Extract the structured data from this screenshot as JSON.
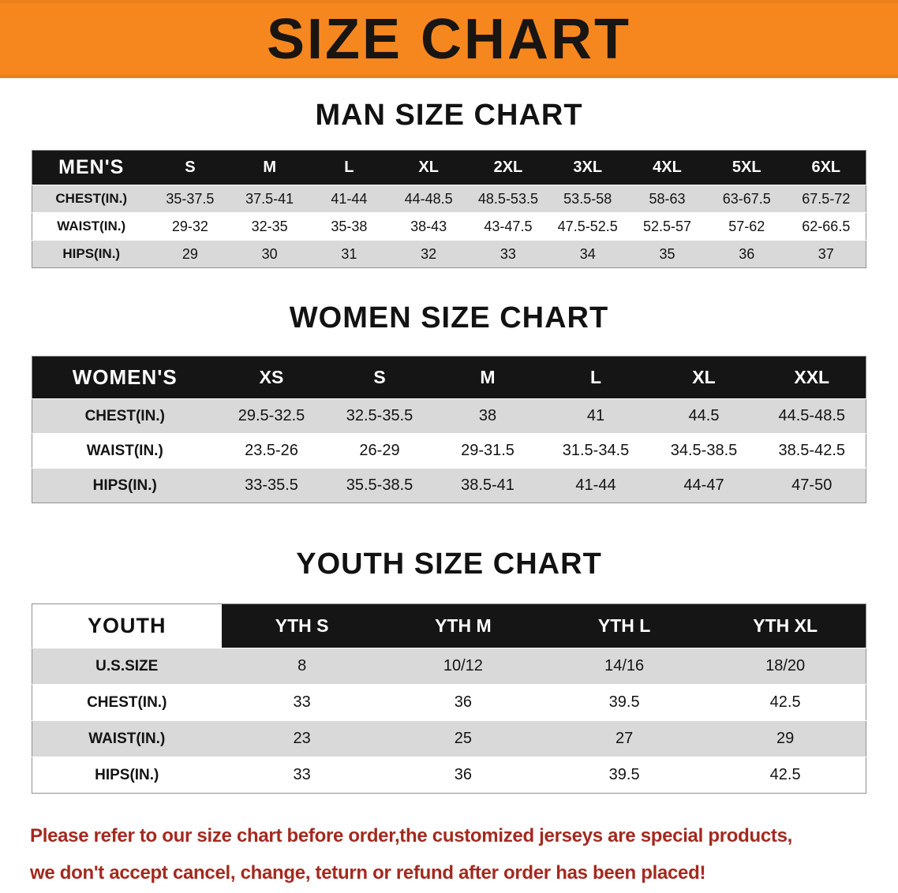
{
  "banner": {
    "title": "SIZE CHART"
  },
  "sections": [
    {
      "id": "men",
      "heading": "MAN SIZE CHART",
      "table": {
        "header": [
          "MEN'S",
          "S",
          "M",
          "L",
          "XL",
          "2XL",
          "3XL",
          "4XL",
          "5XL",
          "6XL"
        ],
        "rows": [
          [
            "CHEST(IN.)",
            "35-37.5",
            "37.5-41",
            "41-44",
            "44-48.5",
            "48.5-53.5",
            "53.5-58",
            "58-63",
            "63-67.5",
            "67.5-72"
          ],
          [
            "WAIST(IN.)",
            "29-32",
            "32-35",
            "35-38",
            "38-43",
            "43-47.5",
            "47.5-52.5",
            "52.5-57",
            "57-62",
            "62-66.5"
          ],
          [
            "HIPS(IN.)",
            "29",
            "30",
            "31",
            "32",
            "33",
            "34",
            "35",
            "36",
            "37"
          ]
        ]
      }
    },
    {
      "id": "women",
      "heading": "WOMEN SIZE CHART",
      "table": {
        "header": [
          "WOMEN'S",
          "XS",
          "S",
          "M",
          "L",
          "XL",
          "XXL"
        ],
        "rows": [
          [
            "CHEST(IN.)",
            "29.5-32.5",
            "32.5-35.5",
            "38",
            "41",
            "44.5",
            "44.5-48.5"
          ],
          [
            "WAIST(IN.)",
            "23.5-26",
            "26-29",
            "29-31.5",
            "31.5-34.5",
            "34.5-38.5",
            "38.5-42.5"
          ],
          [
            "HIPS(IN.)",
            "33-35.5",
            "35.5-38.5",
            "38.5-41",
            "41-44",
            "44-47",
            "47-50"
          ]
        ]
      }
    },
    {
      "id": "youth",
      "heading": "YOUTH SIZE CHART",
      "table": {
        "header": [
          "YOUTH",
          "YTH S",
          "YTH M",
          "YTH L",
          "YTH XL"
        ],
        "rows": [
          [
            "U.S.SIZE",
            "8",
            "10/12",
            "14/16",
            "18/20"
          ],
          [
            "CHEST(IN.)",
            "33",
            "36",
            "39.5",
            "42.5"
          ],
          [
            "WAIST(IN.)",
            "23",
            "25",
            "27",
            "29"
          ],
          [
            "HIPS(IN.)",
            "33",
            "36",
            "39.5",
            "42.5"
          ]
        ]
      }
    }
  ],
  "disclaimer": {
    "line1": "Please refer to our size chart before order,the customized jerseys are special products,",
    "line2": "we don't accept cancel, change, teturn or refund after order has been placed!"
  },
  "colors": {
    "banner-bg": "#f6871f",
    "banner-text": "#181512",
    "table-header-bg": "#151515",
    "table-header-text": "#ffffff",
    "row-shaded": "#d9d9d9",
    "row-plain": "#ffffff",
    "disclaimer-text": "#a3291f"
  }
}
